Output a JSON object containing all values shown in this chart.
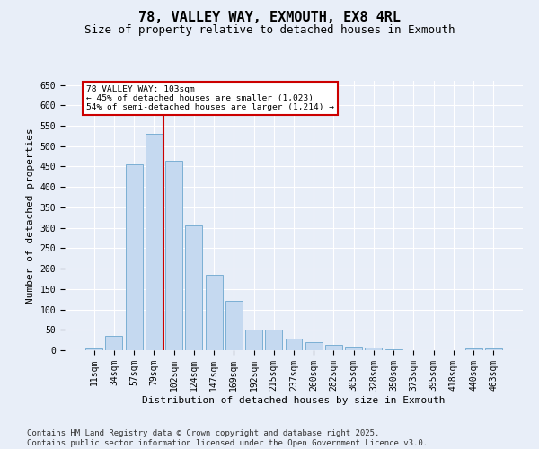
{
  "title": "78, VALLEY WAY, EXMOUTH, EX8 4RL",
  "subtitle": "Size of property relative to detached houses in Exmouth",
  "xlabel": "Distribution of detached houses by size in Exmouth",
  "ylabel": "Number of detached properties",
  "footer_line1": "Contains HM Land Registry data © Crown copyright and database right 2025.",
  "footer_line2": "Contains public sector information licensed under the Open Government Licence v3.0.",
  "categories": [
    "11sqm",
    "34sqm",
    "57sqm",
    "79sqm",
    "102sqm",
    "124sqm",
    "147sqm",
    "169sqm",
    "192sqm",
    "215sqm",
    "237sqm",
    "260sqm",
    "282sqm",
    "305sqm",
    "328sqm",
    "350sqm",
    "373sqm",
    "395sqm",
    "418sqm",
    "440sqm",
    "463sqm"
  ],
  "values": [
    5,
    35,
    455,
    530,
    465,
    305,
    185,
    121,
    50,
    50,
    28,
    19,
    14,
    9,
    6,
    2,
    1,
    0,
    1,
    5,
    4
  ],
  "bar_color": "#c5d9f0",
  "bar_edge_color": "#7bafd4",
  "highlight_index": 4,
  "highlight_color": "#cc0000",
  "annotation_title": "78 VALLEY WAY: 103sqm",
  "annotation_line1": "← 45% of detached houses are smaller (1,023)",
  "annotation_line2": "54% of semi-detached houses are larger (1,214) →",
  "annotation_box_color": "#cc0000",
  "ylim": [
    0,
    660
  ],
  "yticks": [
    0,
    50,
    100,
    150,
    200,
    250,
    300,
    350,
    400,
    450,
    500,
    550,
    600,
    650
  ],
  "background_color": "#e8eef8",
  "plot_bg_color": "#e8eef8",
  "grid_color": "#ffffff",
  "title_fontsize": 11,
  "subtitle_fontsize": 9,
  "label_fontsize": 8,
  "tick_fontsize": 7,
  "footer_fontsize": 6.5
}
